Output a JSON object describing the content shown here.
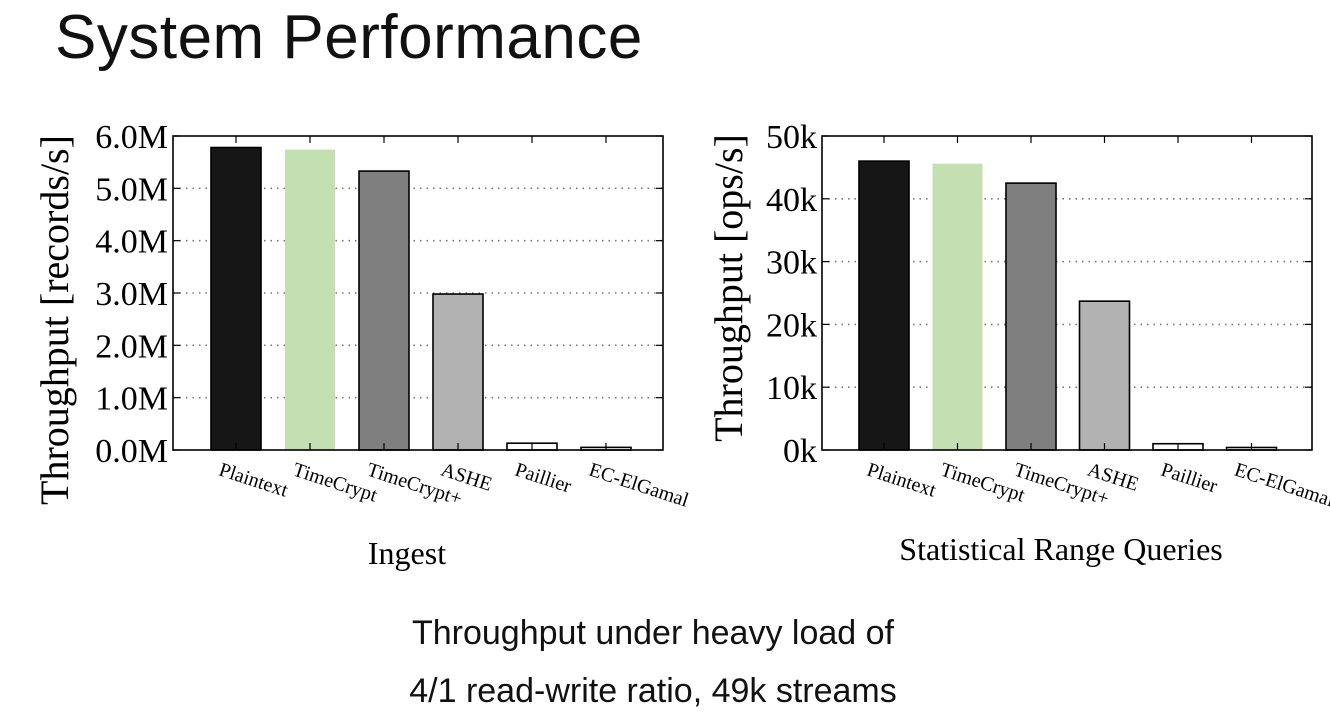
{
  "slide": {
    "title": "System Performance",
    "caption_line1": "Throughput under heavy load of",
    "caption_line2": "4/1 read-write ratio, 49k streams"
  },
  "colors": {
    "Plaintext": "#161616",
    "TimeCrypt": "#c4e0b2",
    "TimeCrypt+": "#7f7f7f",
    "ASHE": "#b2b2b2",
    "Paillier": "#ffffff",
    "EC-ElGamal": "#ffffff"
  },
  "chart_data": [
    {
      "type": "bar",
      "title": "",
      "xlabel": "Ingest",
      "ylabel": "Throughput [records/s]",
      "categories": [
        "Plaintext",
        "TimeCrypt",
        "TimeCrypt+",
        "ASHE",
        "Paillier",
        "EC-ElGamal"
      ],
      "values": [
        5.78,
        5.74,
        5.33,
        2.98,
        0.13,
        0.05
      ],
      "ylim": [
        0,
        6.0
      ],
      "yticks": [
        0,
        1,
        2,
        3,
        4,
        5,
        6
      ],
      "ytick_labels": [
        "0.0M",
        "1.0M",
        "2.0M",
        "3.0M",
        "4.0M",
        "5.0M",
        "6.0M"
      ],
      "grid": "horizontal dotted",
      "legend": "none"
    },
    {
      "type": "bar",
      "title": "",
      "xlabel": "Statistical Range Queries",
      "ylabel": "Throughput [ops/s]",
      "categories": [
        "Plaintext",
        "TimeCrypt",
        "TimeCrypt+",
        "ASHE",
        "Paillier",
        "EC-ElGamal"
      ],
      "values": [
        46000,
        45600,
        42500,
        23700,
        1000,
        400
      ],
      "ylim": [
        0,
        50000
      ],
      "yticks": [
        0,
        10000,
        20000,
        30000,
        40000,
        50000
      ],
      "ytick_labels": [
        "0k",
        "10k",
        "20k",
        "30k",
        "40k",
        "50k"
      ],
      "grid": "horizontal dotted",
      "legend": "none"
    }
  ]
}
